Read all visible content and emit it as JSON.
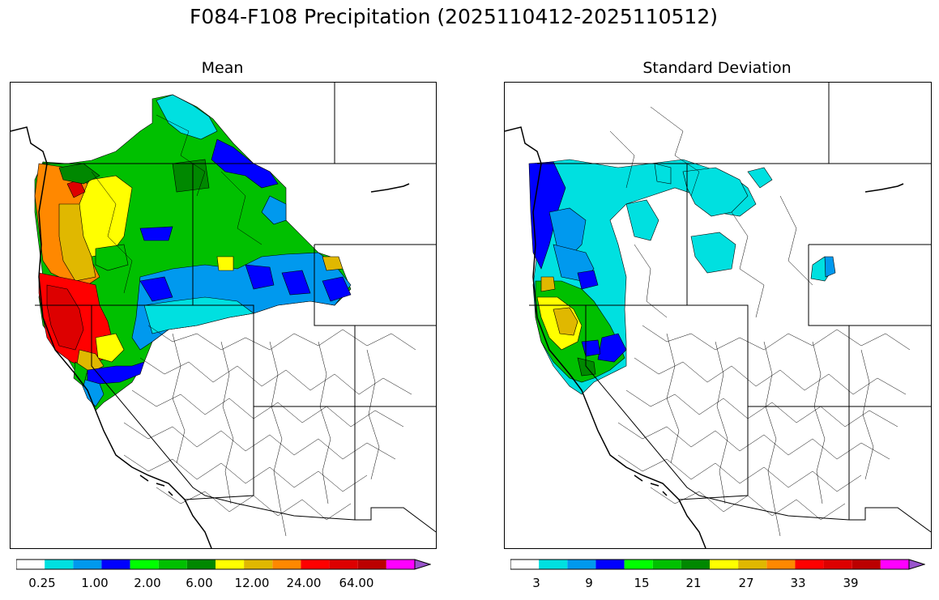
{
  "figure": {
    "title": "F084-F108 Precipitation (2025110412-2025110512)"
  },
  "panels": [
    {
      "title": "Mean",
      "colorbar": {
        "colors": [
          "#ffffff",
          "#00e0e0",
          "#0099ee",
          "#0000ff",
          "#00ff00",
          "#00c000",
          "#008800",
          "#ffff00",
          "#e0b800",
          "#ff8800",
          "#ff0000",
          "#dd0000",
          "#bb0000",
          "#ff00ff",
          "#9955cc"
        ],
        "tick_labels": [
          "0.25",
          "1.00",
          "2.00",
          "6.00",
          "12.00",
          "24.00",
          "64.00"
        ]
      }
    },
    {
      "title": "Standard Deviation",
      "colorbar": {
        "colors": [
          "#ffffff",
          "#00e0e0",
          "#0099ee",
          "#0000ff",
          "#00ff00",
          "#00c000",
          "#008800",
          "#ffff00",
          "#e0b800",
          "#ff8800",
          "#ff0000",
          "#dd0000",
          "#bb0000",
          "#ff00ff",
          "#9955cc"
        ],
        "tick_labels": [
          "3",
          "9",
          "15",
          "21",
          "27",
          "33",
          "39"
        ]
      }
    }
  ],
  "legend_colors": {
    "ocean_bg": "#ffffff",
    "border": "#000000"
  }
}
